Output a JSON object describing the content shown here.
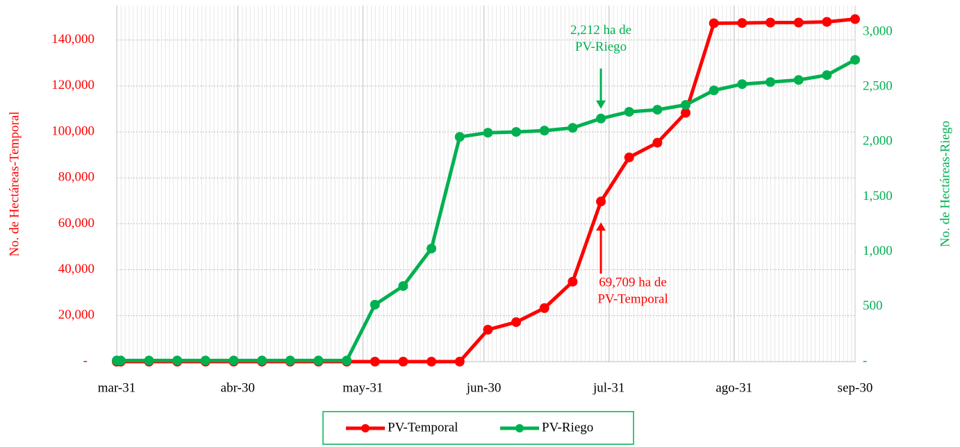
{
  "chart_data": {
    "type": "line",
    "x": [
      0,
      1,
      8,
      15,
      22,
      29,
      36,
      43,
      50,
      57,
      64,
      71,
      78,
      85,
      92,
      99,
      106,
      113,
      120,
      127,
      134,
      141,
      148,
      155,
      162,
      169,
      176,
      183
    ],
    "xlim": [
      0,
      183
    ],
    "xticks": [
      {
        "value": 0,
        "label": "mar-31"
      },
      {
        "value": 30,
        "label": "abr-30"
      },
      {
        "value": 61,
        "label": "may-31"
      },
      {
        "value": 91,
        "label": "jun-30"
      },
      {
        "value": 122,
        "label": "jul-31"
      },
      {
        "value": 153,
        "label": "ago-31"
      },
      {
        "value": 183,
        "label": "sep-30"
      }
    ],
    "ylim": [
      0,
      155000
    ],
    "yticks": [
      {
        "value": 0,
        "label": "-"
      },
      {
        "value": 20000,
        "label": "20,000"
      },
      {
        "value": 40000,
        "label": "40,000"
      },
      {
        "value": 60000,
        "label": "60,000"
      },
      {
        "value": 80000,
        "label": "80,000"
      },
      {
        "value": 100000,
        "label": "100,000"
      },
      {
        "value": 120000,
        "label": "120,000"
      },
      {
        "value": 140000,
        "label": "140,000"
      }
    ],
    "y2lim": [
      0,
      3240
    ],
    "y2ticks": [
      {
        "value": 0,
        "label": "-"
      },
      500,
      {
        "value": 1000,
        "label": "1,000"
      },
      {
        "value": 1500,
        "label": "1,500"
      },
      {
        "value": 2000,
        "label": "2,000"
      },
      {
        "value": 2500,
        "label": "2,500"
      },
      {
        "value": 3000,
        "label": "3,000"
      }
    ],
    "ylabel": "No. de Hectáreas-Temporal",
    "y2label": "No. de Hectáreas-Riego",
    "grid": true,
    "series": [
      {
        "name": "PV-Temporal",
        "color": "#ff0000",
        "values": [
          0,
          0,
          0,
          0,
          0,
          0,
          0,
          0,
          0,
          0,
          0,
          0,
          0,
          0,
          13900,
          17200,
          23300,
          34800,
          69709,
          88900,
          95300,
          108300,
          147300,
          147400,
          147600,
          147600,
          147900,
          149100
        ]
      },
      {
        "name": "PV-Riego",
        "color": "#00b050",
        "axis": "y2",
        "values": [
          10,
          10,
          10,
          10,
          10,
          10,
          10,
          10,
          10,
          10,
          518,
          688,
          1029,
          2045,
          2083,
          2090,
          2102,
          2127,
          2212,
          2273,
          2292,
          2336,
          2468,
          2525,
          2544,
          2563,
          2607,
          2746
        ]
      }
    ],
    "annotations": [
      {
        "lines": [
          "2,212 ha de",
          "PV-Riego"
        ],
        "color": "#00b050",
        "series": 1,
        "point": 18,
        "dir": "down"
      },
      {
        "lines": [
          "69,709 ha de",
          "PV-Temporal"
        ],
        "color": "#ff0000",
        "series": 0,
        "point": 18,
        "dir": "up"
      }
    ]
  }
}
